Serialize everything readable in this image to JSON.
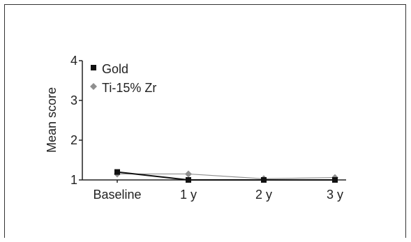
{
  "chart_data": {
    "type": "line",
    "categories": [
      "Baseline",
      "1 y",
      "2 y",
      "3 y"
    ],
    "series": [
      {
        "name": "Gold",
        "color": "#111111",
        "marker": "square",
        "values": [
          1.2,
          1.0,
          1.0,
          1.0
        ]
      },
      {
        "name": "Ti-15% Zr",
        "color": "#8f8f8f",
        "marker": "diamond",
        "values": [
          1.15,
          1.15,
          1.03,
          1.06
        ]
      }
    ],
    "ylabel": "Mean score",
    "ylim": [
      1,
      4
    ],
    "yticks": [
      "1",
      "2",
      "3",
      "4"
    ],
    "grid": false,
    "legend_position": "top-left"
  }
}
